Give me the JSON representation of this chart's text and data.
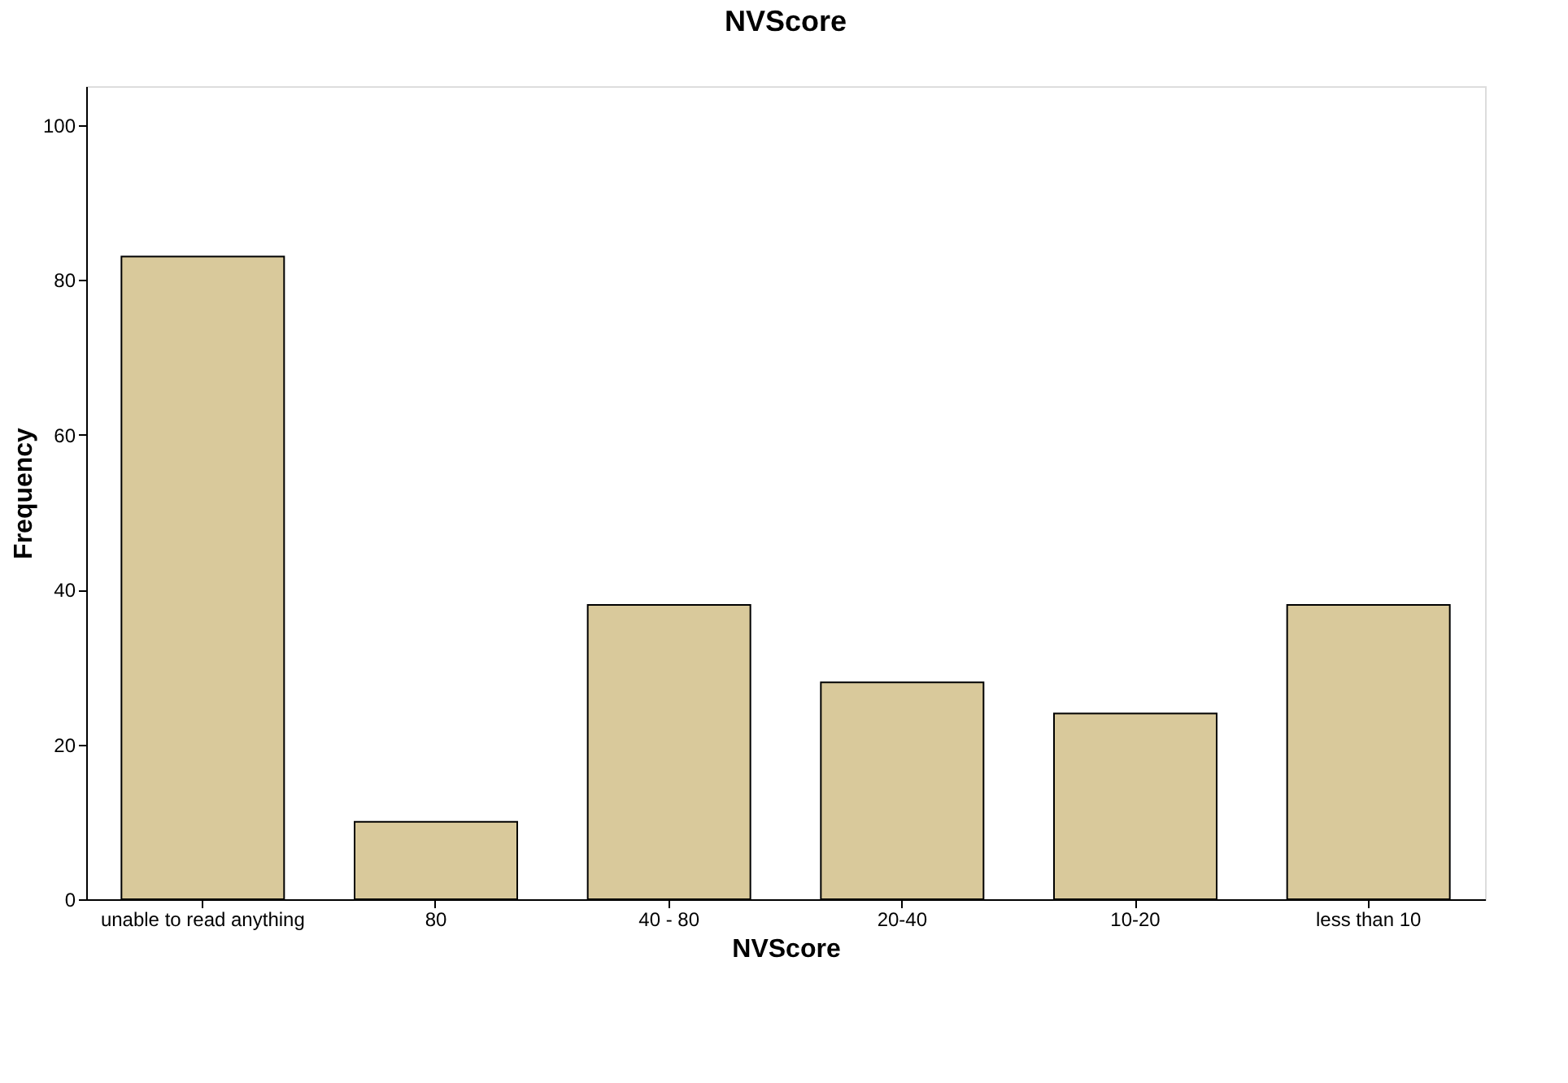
{
  "chart_data": {
    "type": "bar",
    "title": "NVScore",
    "xlabel": "NVScore",
    "ylabel": "Frequency",
    "categories": [
      "unable to read anything",
      "80",
      "40 - 80",
      "20-40",
      "10-20",
      "less than 10"
    ],
    "values": [
      83,
      10,
      38,
      28,
      24,
      38
    ],
    "color": "#d9c99b",
    "ylim": [
      0,
      105
    ],
    "yticks": [
      0,
      20,
      40,
      60,
      80,
      100
    ],
    "grid": false
  }
}
